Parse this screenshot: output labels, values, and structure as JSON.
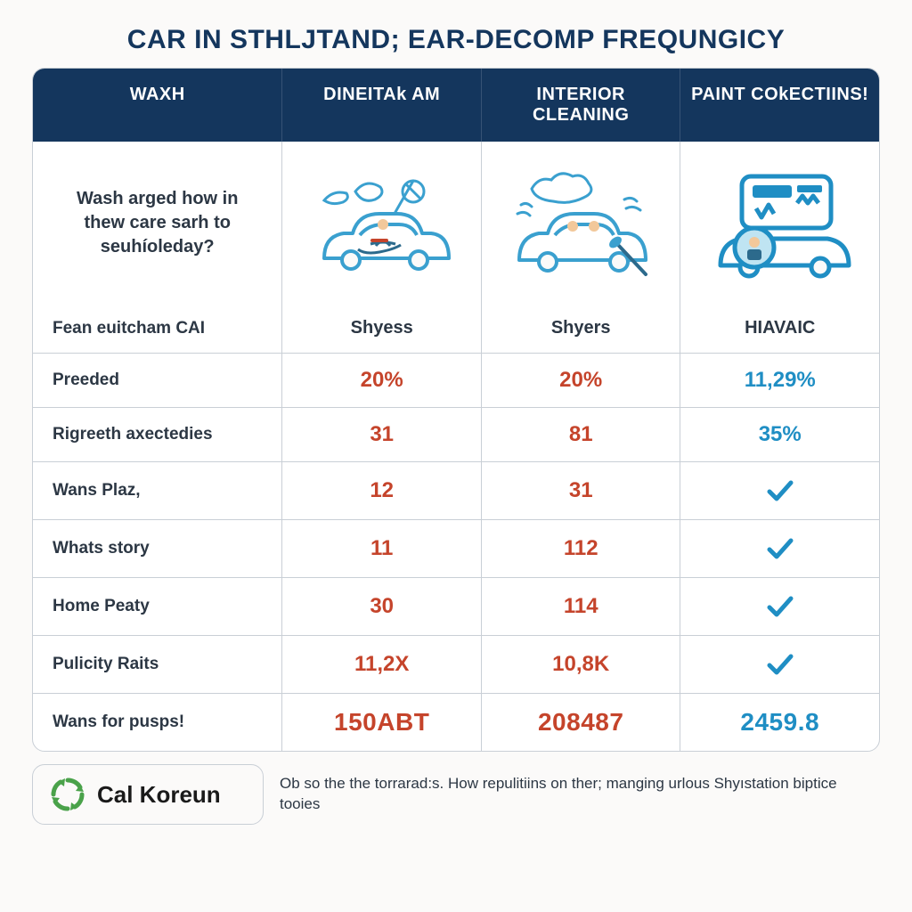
{
  "colors": {
    "title": "#14365d",
    "header_bg": "#14365d",
    "header_text": "#ffffff",
    "border": "#c9cfd6",
    "body_text": "#2c3744",
    "row_label": "#2c3744",
    "accent_red": "#c5442b",
    "accent_blue": "#1f8ec4",
    "illus_stroke": "#3aa0cf",
    "illus_dark": "#2c6a8c",
    "brand_green": "#4aa24a",
    "page_bg": "#fbfaf9",
    "cell_bg": "#ffffff"
  },
  "title": "CAR IN STHLJTAND; EAR-DECOMP FREQUNGICY",
  "columns": [
    "WAXH",
    "DINEITAk AM",
    "INTERIOR CLEANING",
    "PAINT COkECTIINS!"
  ],
  "question": "Wash arged how in thew care sarh to seuhíoleday?",
  "rows": [
    {
      "label": "Fean euitcham CAI",
      "c1": {
        "text": "Shyess",
        "style": "sub",
        "color": "body_text"
      },
      "c2": {
        "text": "Shyers",
        "style": "sub",
        "color": "body_text"
      },
      "c3": {
        "text": "HIAVAIC",
        "style": "sub",
        "color": "body_text"
      }
    },
    {
      "label": "Preeded",
      "c1": {
        "text": "20%",
        "style": "val",
        "color": "accent_red"
      },
      "c2": {
        "text": "20%",
        "style": "val",
        "color": "accent_red"
      },
      "c3": {
        "text": "11,29%",
        "style": "val",
        "color": "accent_blue"
      }
    },
    {
      "label": "Rigreeth axectedies",
      "c1": {
        "text": "31",
        "style": "val",
        "color": "accent_red"
      },
      "c2": {
        "text": "81",
        "style": "val",
        "color": "accent_red"
      },
      "c3": {
        "text": "35%",
        "style": "val",
        "color": "accent_blue"
      }
    },
    {
      "label": "Wans Plaz,",
      "c1": {
        "text": "12",
        "style": "val",
        "color": "accent_red"
      },
      "c2": {
        "text": "31",
        "style": "val",
        "color": "accent_red"
      },
      "c3": {
        "check": true
      }
    },
    {
      "label": "Whats story",
      "c1": {
        "text": "11",
        "style": "val",
        "color": "accent_red"
      },
      "c2": {
        "text": "112",
        "style": "val",
        "color": "accent_red"
      },
      "c3": {
        "check": true
      }
    },
    {
      "label": "Home Peaty",
      "c1": {
        "text": "30",
        "style": "val",
        "color": "accent_red"
      },
      "c2": {
        "text": "114",
        "style": "val",
        "color": "accent_red"
      },
      "c3": {
        "check": true
      }
    },
    {
      "label": "Pulicity Raits",
      "c1": {
        "text": "11,2X",
        "style": "val",
        "color": "accent_red"
      },
      "c2": {
        "text": "10,8K",
        "style": "val",
        "color": "accent_red"
      },
      "c3": {
        "check": true
      }
    },
    {
      "label": "Wans for pusps!",
      "c1": {
        "text": "150ABT",
        "style": "big",
        "color": "accent_red"
      },
      "c2": {
        "text": "208487",
        "style": "big",
        "color": "accent_red"
      },
      "c3": {
        "text": "2459.8",
        "style": "big",
        "color": "accent_blue"
      }
    }
  ],
  "footer": {
    "brand": "Cal Koreun",
    "text": "Ob so the the torrarad:s. How repulitiins on ther; manging urlous Shyıstation biptice tooies"
  }
}
